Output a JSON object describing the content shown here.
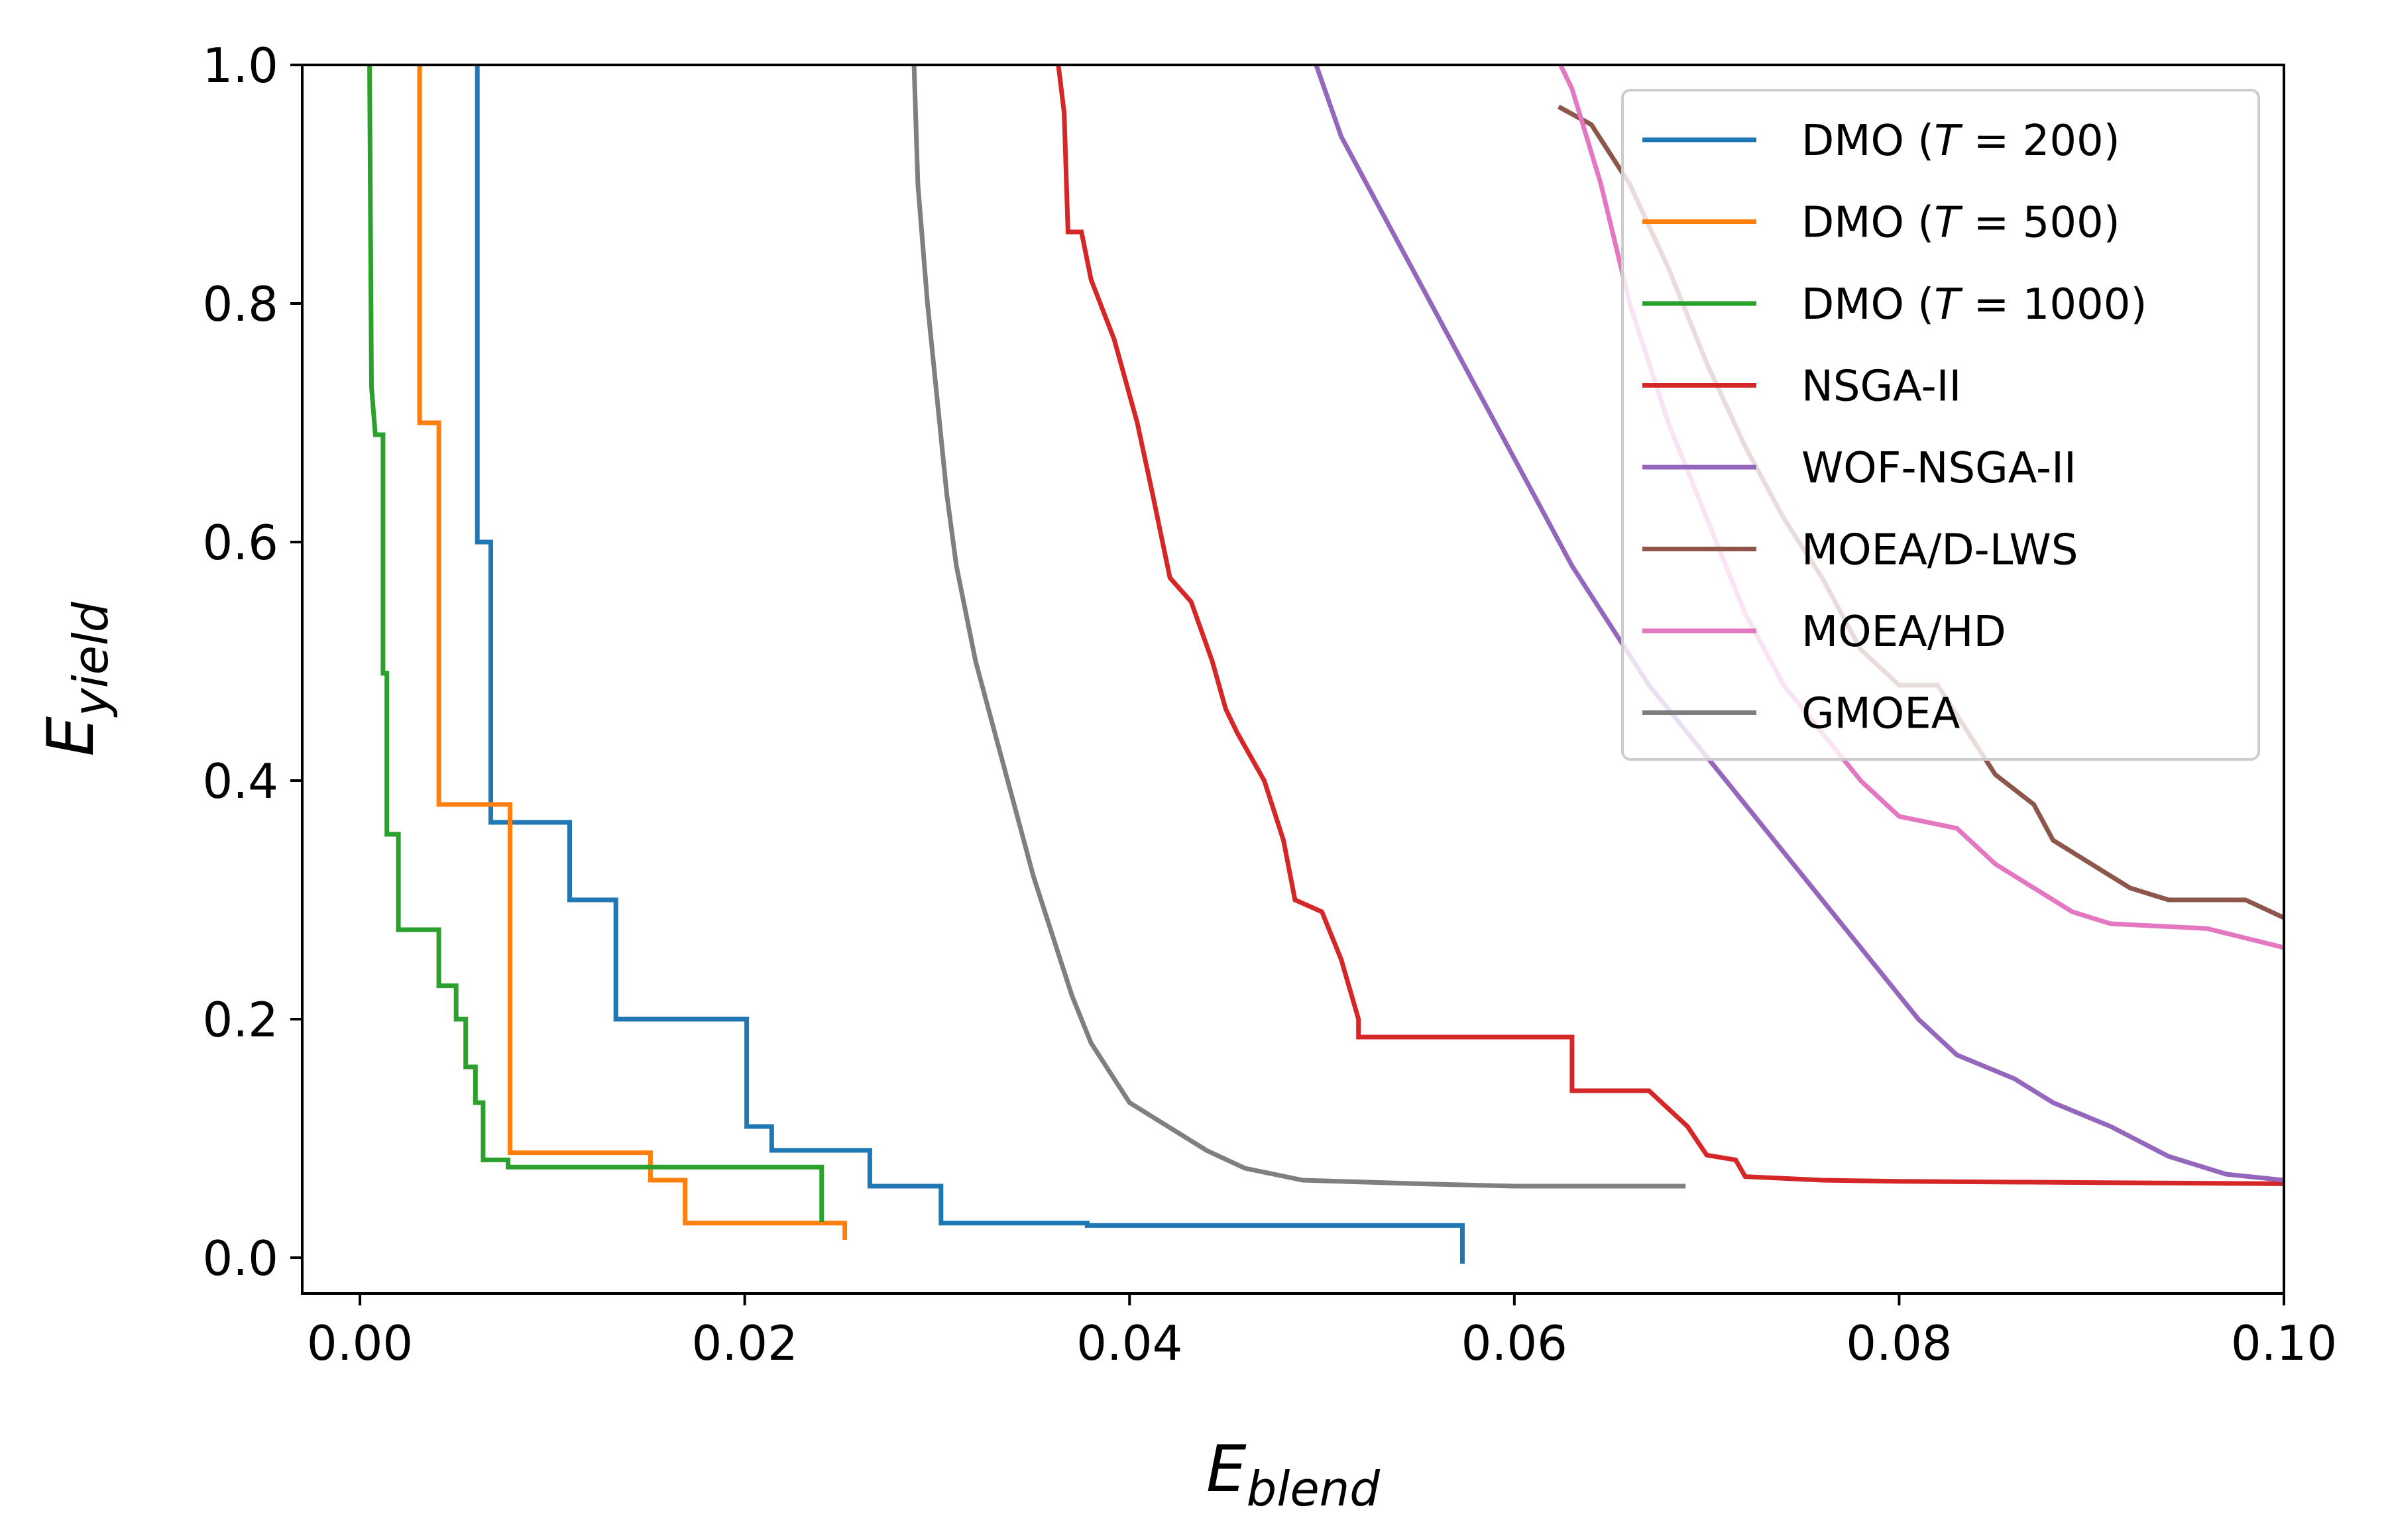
{
  "chart_data": {
    "type": "line",
    "title": "",
    "xlabel": {
      "main": "E",
      "sub": "blend"
    },
    "ylabel": {
      "main": "E",
      "sub": "yield"
    },
    "xlim": [
      -0.003,
      0.1
    ],
    "ylim": [
      -0.03,
      1.0
    ],
    "xticks": [
      0.0,
      0.02,
      0.04,
      0.06,
      0.08,
      0.1
    ],
    "xtick_labels": [
      "0.00",
      "0.02",
      "0.04",
      "0.06",
      "0.08",
      "0.10"
    ],
    "yticks": [
      0.0,
      0.2,
      0.4,
      0.6,
      0.8,
      1.0
    ],
    "ytick_labels": [
      "0.0",
      "0.2",
      "0.4",
      "0.6",
      "0.8",
      "1.0"
    ],
    "legend_position": "top-right",
    "series": [
      {
        "name": "DMO (T = 200)",
        "label_parts": [
          "DMO (",
          "T",
          " = 200)"
        ],
        "color": "#1f77b4",
        "points": [
          [
            0.0061,
            1.0
          ],
          [
            0.0061,
            0.6
          ],
          [
            0.0068,
            0.6
          ],
          [
            0.0068,
            0.365
          ],
          [
            0.0109,
            0.365
          ],
          [
            0.0109,
            0.3
          ],
          [
            0.0133,
            0.3
          ],
          [
            0.0133,
            0.2
          ],
          [
            0.0201,
            0.2
          ],
          [
            0.0201,
            0.11
          ],
          [
            0.0214,
            0.11
          ],
          [
            0.0214,
            0.09
          ],
          [
            0.0265,
            0.09
          ],
          [
            0.0265,
            0.06
          ],
          [
            0.0302,
            0.06
          ],
          [
            0.0302,
            0.029
          ],
          [
            0.0378,
            0.029
          ],
          [
            0.0378,
            0.027
          ],
          [
            0.0573,
            0.027
          ],
          [
            0.0573,
            -0.005
          ]
        ]
      },
      {
        "name": "DMO (T = 500)",
        "label_parts": [
          "DMO (",
          "T",
          " = 500)"
        ],
        "color": "#ff7f0e",
        "points": [
          [
            0.0031,
            1.0
          ],
          [
            0.0031,
            0.7
          ],
          [
            0.0041,
            0.7
          ],
          [
            0.0041,
            0.38
          ],
          [
            0.0078,
            0.38
          ],
          [
            0.0078,
            0.088
          ],
          [
            0.0151,
            0.088
          ],
          [
            0.0151,
            0.065
          ],
          [
            0.0169,
            0.065
          ],
          [
            0.0169,
            0.029
          ],
          [
            0.0252,
            0.029
          ],
          [
            0.0252,
            0.015
          ]
        ]
      },
      {
        "name": "DMO (T = 1000)",
        "label_parts": [
          "DMO (",
          "T",
          " = 1000)"
        ],
        "color": "#2ca02c",
        "points": [
          [
            0.0005,
            1.0
          ],
          [
            0.0006,
            0.73
          ],
          [
            0.0008,
            0.69
          ],
          [
            0.0012,
            0.69
          ],
          [
            0.0012,
            0.49
          ],
          [
            0.0014,
            0.49
          ],
          [
            0.0014,
            0.355
          ],
          [
            0.002,
            0.355
          ],
          [
            0.002,
            0.275
          ],
          [
            0.0041,
            0.275
          ],
          [
            0.0041,
            0.228
          ],
          [
            0.005,
            0.228
          ],
          [
            0.005,
            0.2
          ],
          [
            0.0055,
            0.2
          ],
          [
            0.0055,
            0.16
          ],
          [
            0.006,
            0.16
          ],
          [
            0.006,
            0.13
          ],
          [
            0.0064,
            0.13
          ],
          [
            0.0064,
            0.082
          ],
          [
            0.0077,
            0.082
          ],
          [
            0.0077,
            0.076
          ],
          [
            0.024,
            0.076
          ],
          [
            0.024,
            0.03
          ]
        ]
      },
      {
        "name": "NSGA-II",
        "label_parts": [
          "NSGA-II"
        ],
        "color": "#d62728",
        "points": [
          [
            0.0363,
            1.0
          ],
          [
            0.0366,
            0.96
          ],
          [
            0.0368,
            0.86
          ],
          [
            0.0375,
            0.86
          ],
          [
            0.038,
            0.82
          ],
          [
            0.0392,
            0.77
          ],
          [
            0.0404,
            0.7
          ],
          [
            0.0412,
            0.64
          ],
          [
            0.0421,
            0.57
          ],
          [
            0.0432,
            0.55
          ],
          [
            0.0443,
            0.5
          ],
          [
            0.045,
            0.46
          ],
          [
            0.0456,
            0.44
          ],
          [
            0.047,
            0.4
          ],
          [
            0.048,
            0.35
          ],
          [
            0.0486,
            0.3
          ],
          [
            0.05,
            0.29
          ],
          [
            0.051,
            0.25
          ],
          [
            0.0519,
            0.2
          ],
          [
            0.0519,
            0.185
          ],
          [
            0.063,
            0.185
          ],
          [
            0.063,
            0.14
          ],
          [
            0.067,
            0.14
          ],
          [
            0.069,
            0.11
          ],
          [
            0.07,
            0.086
          ],
          [
            0.0715,
            0.082
          ],
          [
            0.072,
            0.068
          ],
          [
            0.076,
            0.065
          ],
          [
            0.08,
            0.064
          ],
          [
            0.09,
            0.063
          ],
          [
            0.1,
            0.062
          ]
        ]
      },
      {
        "name": "WOF-NSGA-II",
        "label_parts": [
          "WOF-NSGA-II"
        ],
        "color": "#9467bd",
        "points": [
          [
            0.0497,
            1.0
          ],
          [
            0.051,
            0.94
          ],
          [
            0.053,
            0.88
          ],
          [
            0.055,
            0.82
          ],
          [
            0.057,
            0.76
          ],
          [
            0.059,
            0.7
          ],
          [
            0.061,
            0.64
          ],
          [
            0.063,
            0.58
          ],
          [
            0.065,
            0.53
          ],
          [
            0.067,
            0.48
          ],
          [
            0.069,
            0.44
          ],
          [
            0.071,
            0.4
          ],
          [
            0.073,
            0.36
          ],
          [
            0.075,
            0.32
          ],
          [
            0.077,
            0.28
          ],
          [
            0.079,
            0.24
          ],
          [
            0.081,
            0.2
          ],
          [
            0.083,
            0.17
          ],
          [
            0.086,
            0.15
          ],
          [
            0.088,
            0.13
          ],
          [
            0.091,
            0.11
          ],
          [
            0.094,
            0.085
          ],
          [
            0.097,
            0.07
          ],
          [
            0.1,
            0.065
          ]
        ]
      },
      {
        "name": "MOEA/D-LWS",
        "label_parts": [
          "MOEA/D-LWS"
        ],
        "color": "#8c564b",
        "points": [
          [
            0.0623,
            0.965
          ],
          [
            0.064,
            0.95
          ],
          [
            0.066,
            0.9
          ],
          [
            0.068,
            0.83
          ],
          [
            0.07,
            0.75
          ],
          [
            0.072,
            0.68
          ],
          [
            0.074,
            0.62
          ],
          [
            0.076,
            0.57
          ],
          [
            0.078,
            0.51
          ],
          [
            0.08,
            0.48
          ],
          [
            0.082,
            0.48
          ],
          [
            0.084,
            0.43
          ],
          [
            0.085,
            0.405
          ],
          [
            0.087,
            0.38
          ],
          [
            0.088,
            0.35
          ],
          [
            0.09,
            0.33
          ],
          [
            0.092,
            0.31
          ],
          [
            0.094,
            0.3
          ],
          [
            0.098,
            0.3
          ],
          [
            0.1,
            0.285
          ]
        ]
      },
      {
        "name": "MOEA/HD",
        "label_parts": [
          "MOEA/HD"
        ],
        "color": "#e377c2",
        "points": [
          [
            0.0624,
            1.0
          ],
          [
            0.063,
            0.98
          ],
          [
            0.0645,
            0.9
          ],
          [
            0.066,
            0.8
          ],
          [
            0.068,
            0.7
          ],
          [
            0.07,
            0.62
          ],
          [
            0.072,
            0.54
          ],
          [
            0.074,
            0.48
          ],
          [
            0.076,
            0.44
          ],
          [
            0.078,
            0.4
          ],
          [
            0.08,
            0.37
          ],
          [
            0.083,
            0.36
          ],
          [
            0.085,
            0.33
          ],
          [
            0.087,
            0.31
          ],
          [
            0.089,
            0.29
          ],
          [
            0.091,
            0.28
          ],
          [
            0.096,
            0.276
          ],
          [
            0.1,
            0.26
          ]
        ]
      },
      {
        "name": "GMOEA",
        "label_parts": [
          "GMOEA"
        ],
        "color": "#7f7f7f",
        "points": [
          [
            0.0288,
            1.0
          ],
          [
            0.029,
            0.9
          ],
          [
            0.0295,
            0.8
          ],
          [
            0.03,
            0.72
          ],
          [
            0.0305,
            0.64
          ],
          [
            0.031,
            0.58
          ],
          [
            0.032,
            0.5
          ],
          [
            0.033,
            0.44
          ],
          [
            0.034,
            0.38
          ],
          [
            0.035,
            0.32
          ],
          [
            0.036,
            0.27
          ],
          [
            0.037,
            0.22
          ],
          [
            0.038,
            0.18
          ],
          [
            0.039,
            0.155
          ],
          [
            0.04,
            0.13
          ],
          [
            0.042,
            0.11
          ],
          [
            0.044,
            0.09
          ],
          [
            0.046,
            0.075
          ],
          [
            0.049,
            0.065
          ],
          [
            0.055,
            0.062
          ],
          [
            0.06,
            0.06
          ],
          [
            0.0689,
            0.06
          ]
        ]
      }
    ]
  }
}
